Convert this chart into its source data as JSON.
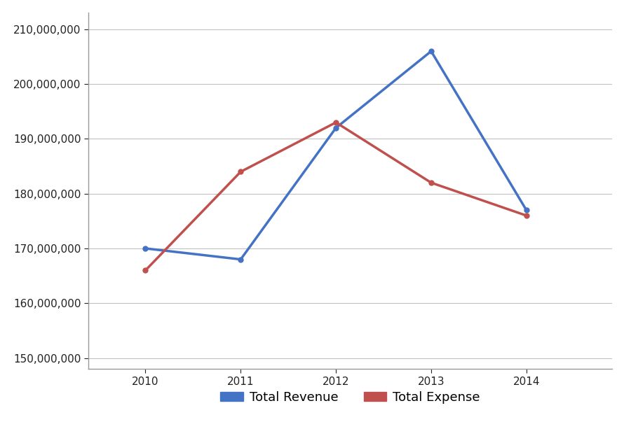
{
  "years": [
    2010,
    2011,
    2012,
    2013,
    2014
  ],
  "total_revenue": [
    170000000,
    168000000,
    192000000,
    206000000,
    177000000
  ],
  "total_expense": [
    166000000,
    184000000,
    193000000,
    182000000,
    176000000
  ],
  "revenue_color": "#4472C4",
  "expense_color": "#C0504D",
  "ylim_min": 148000000,
  "ylim_max": 213000000,
  "background_color": "#FFFFFF",
  "grid_color": "#C0C0C0",
  "legend_revenue": "Total Revenue",
  "legend_expense": "Total Expense",
  "line_width": 2.5,
  "marker": "o",
  "marker_size": 5,
  "spine_color": "#999999",
  "tick_label_size": 11,
  "legend_fontsize": 13
}
